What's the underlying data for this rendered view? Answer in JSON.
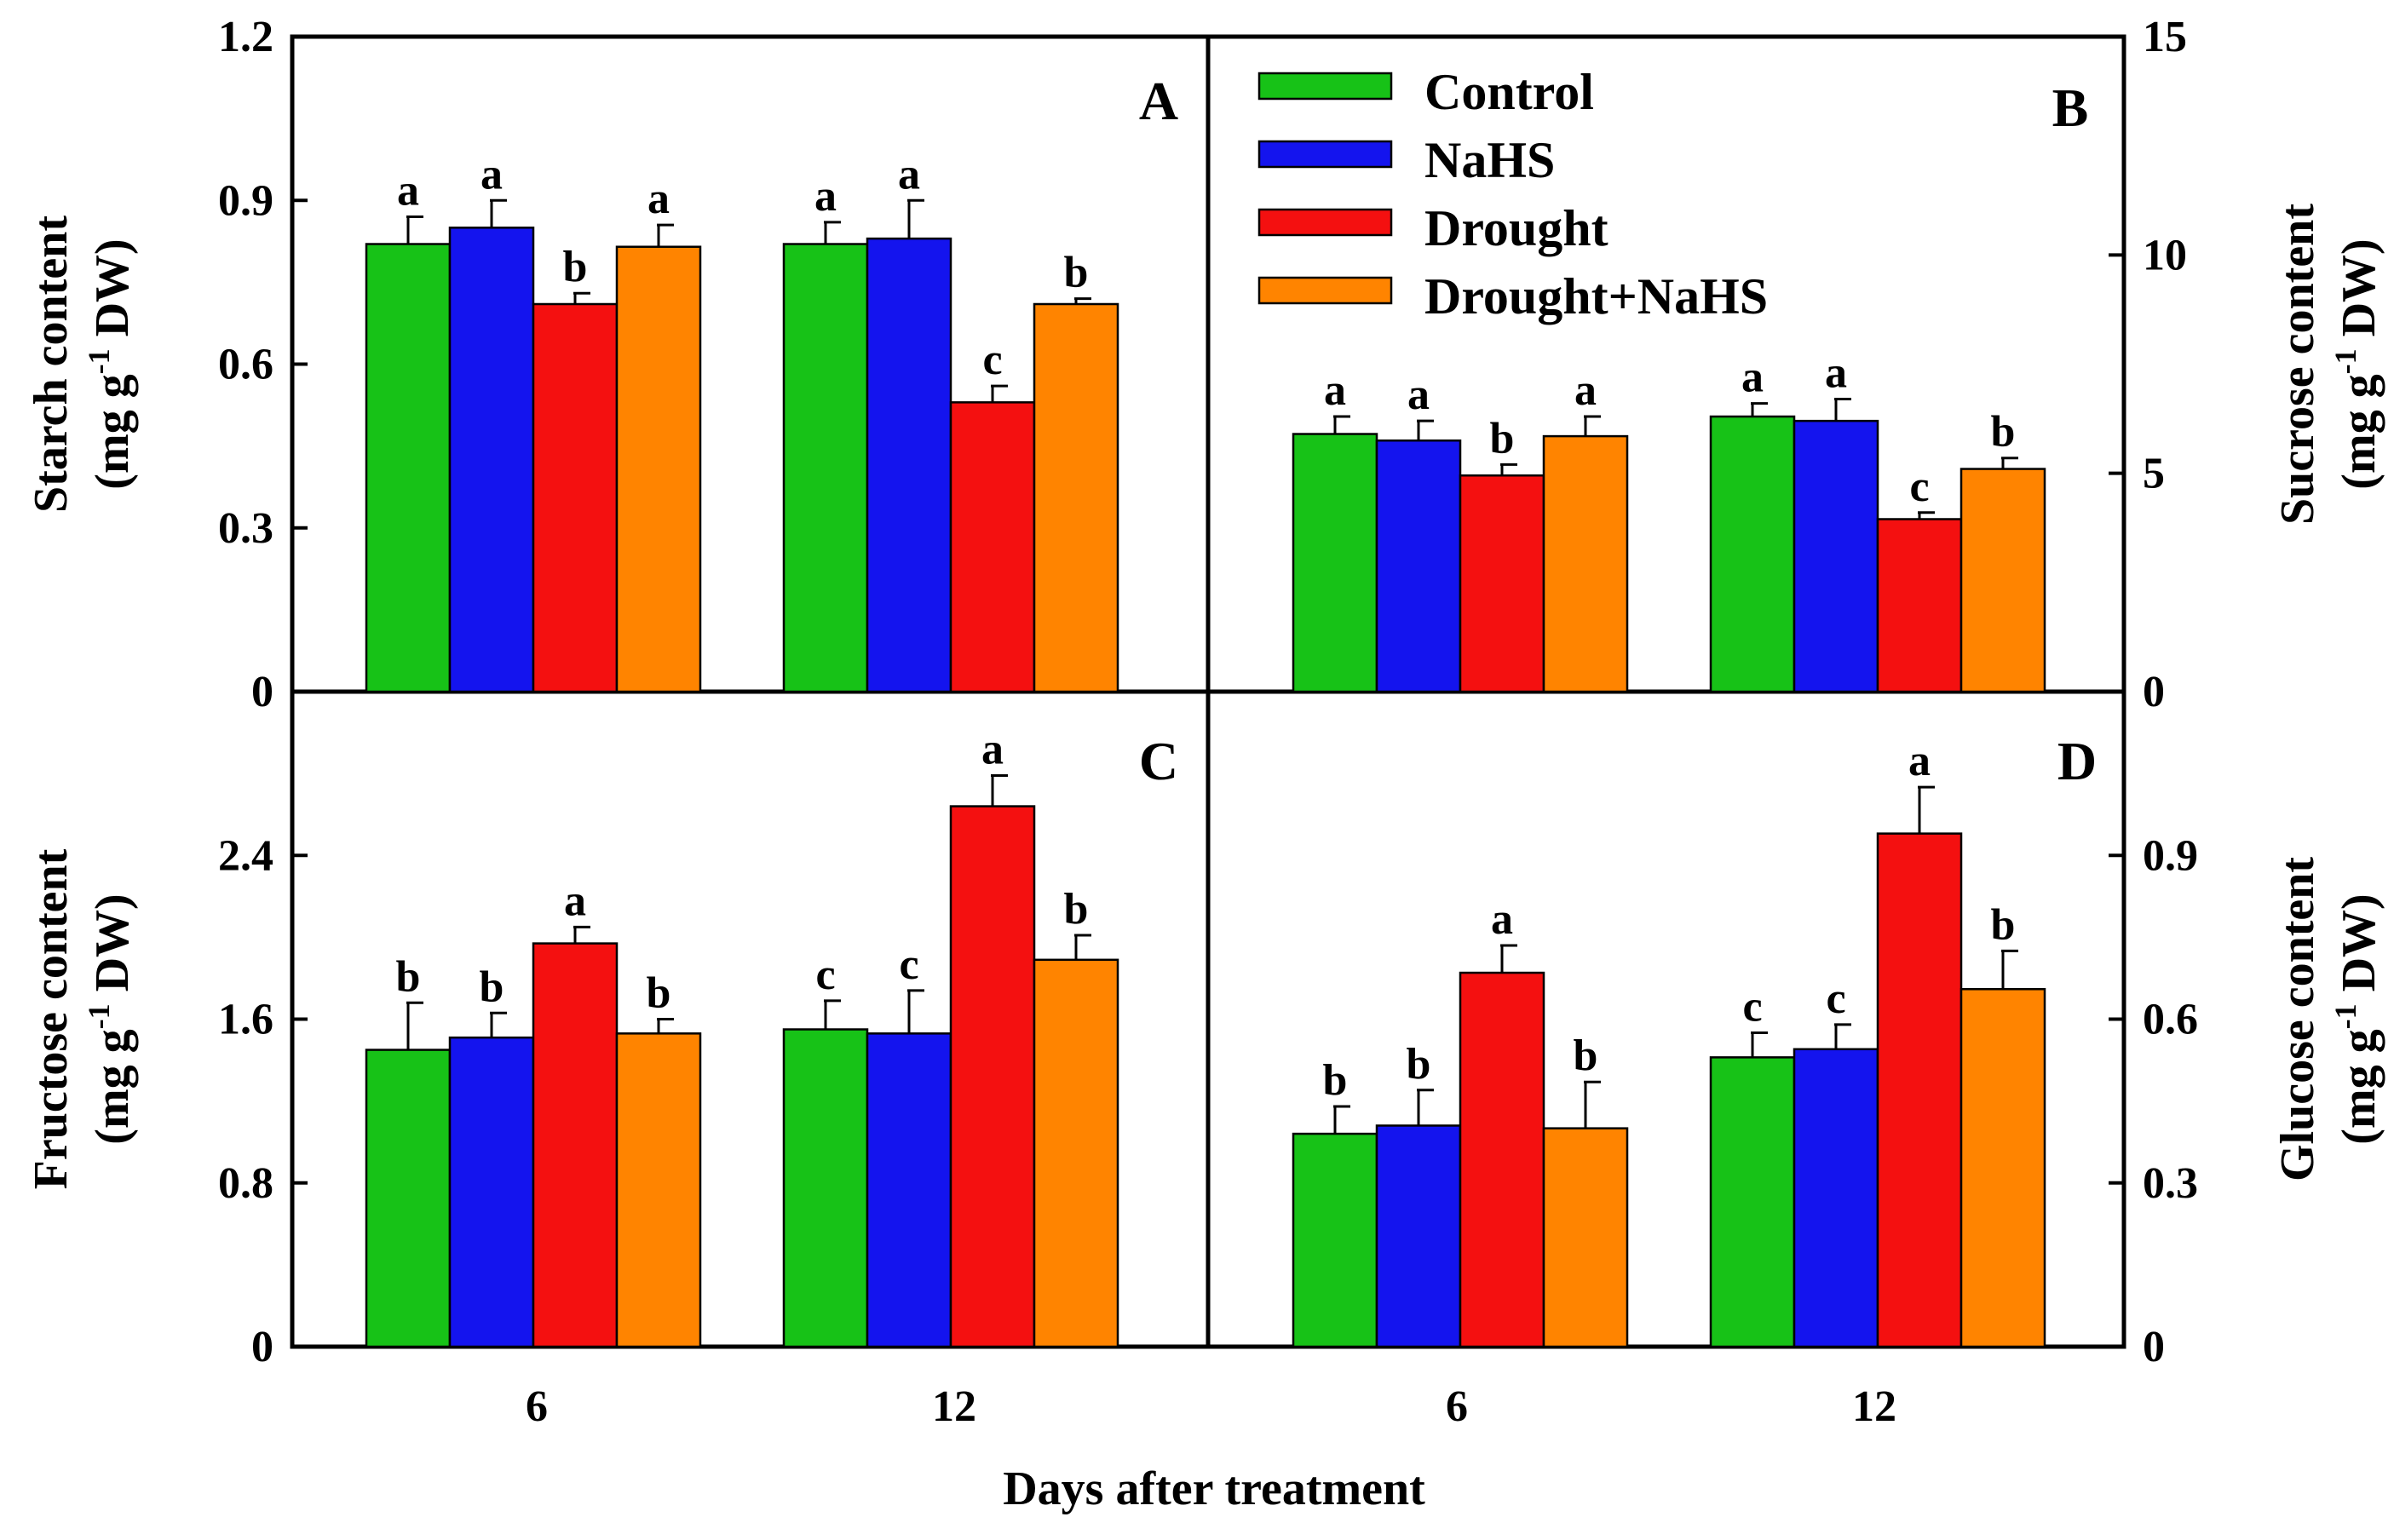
{
  "chart_data": {
    "type": "bar",
    "xlabel": "Days after treatment",
    "categories": [
      "6",
      "12"
    ],
    "series_names": [
      "Control",
      "NaHS",
      "Drought",
      "Drought+NaHS"
    ],
    "colors": {
      "Control": "#17c217",
      "NaHS": "#1414ee",
      "Drought": "#f41010",
      "Drought+NaHS": "#ff8400"
    },
    "panels": [
      {
        "label": "A",
        "ylabel_line1": "Starch content",
        "ylabel_line2_prefix": "(mg g",
        "ylabel_sup": "-1",
        "ylabel_line2_suffix": " DW)",
        "ylim": [
          0,
          1.2
        ],
        "yticks": [
          "0",
          "0.3",
          "0.6",
          "0.9",
          "1.2"
        ],
        "ytick_values": [
          0,
          0.3,
          0.6,
          0.9,
          1.2
        ],
        "series": [
          {
            "name": "Control",
            "values": [
              0.82,
              0.82
            ],
            "errors": [
              0.05,
              0.04
            ],
            "letters": [
              "a",
              "a"
            ]
          },
          {
            "name": "NaHS",
            "values": [
              0.85,
              0.83
            ],
            "errors": [
              0.05,
              0.07
            ],
            "letters": [
              "a",
              "a"
            ]
          },
          {
            "name": "Drought",
            "values": [
              0.71,
              0.53
            ],
            "errors": [
              0.02,
              0.03
            ],
            "letters": [
              "b",
              "c"
            ]
          },
          {
            "name": "Drought+NaHS",
            "values": [
              0.815,
              0.71
            ],
            "errors": [
              0.04,
              0.01
            ],
            "letters": [
              "a",
              "b"
            ]
          }
        ]
      },
      {
        "label": "B",
        "ylabel_line1": "Sucrose content",
        "ylabel_line2_prefix": "(mg g",
        "ylabel_sup": "-1",
        "ylabel_line2_suffix": " DW)",
        "ylim": [
          0,
          15
        ],
        "yticks": [
          "0",
          "5",
          "10",
          "15"
        ],
        "ytick_values": [
          0,
          5,
          10,
          15
        ],
        "series": [
          {
            "name": "Control",
            "values": [
              5.9,
              6.3
            ],
            "errors": [
              0.4,
              0.3
            ],
            "letters": [
              "a",
              "a"
            ]
          },
          {
            "name": "NaHS",
            "values": [
              5.75,
              6.2
            ],
            "errors": [
              0.45,
              0.5
            ],
            "letters": [
              "a",
              "a"
            ]
          },
          {
            "name": "Drought",
            "values": [
              4.95,
              3.95
            ],
            "errors": [
              0.25,
              0.15
            ],
            "letters": [
              "b",
              "c"
            ]
          },
          {
            "name": "Drought+NaHS",
            "values": [
              5.85,
              5.1
            ],
            "errors": [
              0.45,
              0.25
            ],
            "letters": [
              "a",
              "b"
            ]
          }
        ]
      },
      {
        "label": "C",
        "ylabel_line1": "Fructose content",
        "ylabel_line2_prefix": "(mg g",
        "ylabel_sup": "-1",
        "ylabel_line2_suffix": " DW)",
        "ylim": [
          0,
          3.2
        ],
        "yticks": [
          "0",
          "0.8",
          "1.6",
          "2.4"
        ],
        "ytick_values": [
          0,
          0.8,
          1.6,
          2.4
        ],
        "series": [
          {
            "name": "Control",
            "values": [
              1.45,
              1.55
            ],
            "errors": [
              0.23,
              0.14
            ],
            "letters": [
              "b",
              "c"
            ]
          },
          {
            "name": "NaHS",
            "values": [
              1.51,
              1.53
            ],
            "errors": [
              0.12,
              0.21
            ],
            "letters": [
              "b",
              "c"
            ]
          },
          {
            "name": "Drought",
            "values": [
              1.97,
              2.64
            ],
            "errors": [
              0.08,
              0.15
            ],
            "letters": [
              "a",
              "a"
            ]
          },
          {
            "name": "Drought+NaHS",
            "values": [
              1.53,
              1.89
            ],
            "errors": [
              0.07,
              0.12
            ],
            "letters": [
              "b",
              "b"
            ]
          }
        ]
      },
      {
        "label": "D",
        "ylabel_line1": "Glucose content",
        "ylabel_line2_prefix": "(mg g",
        "ylabel_sup": "-1",
        "ylabel_line2_suffix": " DW)",
        "ylim": [
          0,
          1.2
        ],
        "yticks": [
          "0",
          "0.3",
          "0.6",
          "0.9"
        ],
        "ytick_values": [
          0,
          0.3,
          0.6,
          0.9
        ],
        "series": [
          {
            "name": "Control",
            "values": [
              0.39,
              0.53
            ],
            "errors": [
              0.05,
              0.045
            ],
            "letters": [
              "b",
              "c"
            ]
          },
          {
            "name": "NaHS",
            "values": [
              0.405,
              0.545
            ],
            "errors": [
              0.065,
              0.045
            ],
            "letters": [
              "b",
              "c"
            ]
          },
          {
            "name": "Drought",
            "values": [
              0.685,
              0.94
            ],
            "errors": [
              0.05,
              0.085
            ],
            "letters": [
              "a",
              "a"
            ]
          },
          {
            "name": "Drought+NaHS",
            "values": [
              0.4,
              0.655
            ],
            "errors": [
              0.085,
              0.07
            ],
            "letters": [
              "b",
              "b"
            ]
          }
        ]
      }
    ]
  }
}
